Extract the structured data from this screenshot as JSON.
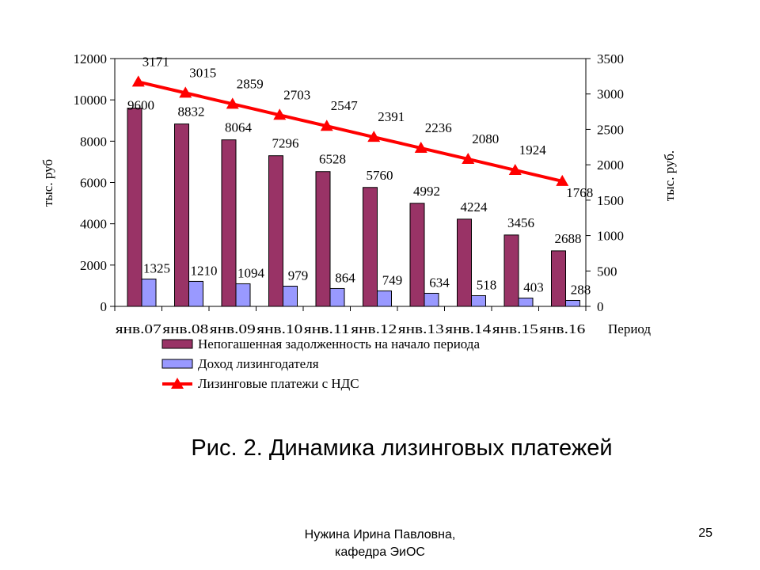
{
  "slide": {
    "caption": "Рис. 2. Динамика лизинговых платежей",
    "author_line1": "Нужина Ирина Павловна,",
    "author_line2": "кафедра ЭиОС",
    "page_number": "25"
  },
  "chart_data": {
    "type": "bar",
    "categories": [
      "янв.07",
      "янв.08",
      "янв.09",
      "янв.10",
      "янв.11",
      "янв.12",
      "янв.13",
      "янв.14",
      "янв.15",
      "янв.16"
    ],
    "xlabel": "Период",
    "ylabel_left": "тыс. руб",
    "ylabel_right": "тыс. руб.",
    "ylim_left": [
      0,
      12000
    ],
    "yticks_left": [
      0,
      2000,
      4000,
      6000,
      8000,
      10000,
      12000
    ],
    "ylim_right": [
      0,
      3500
    ],
    "yticks_right": [
      0,
      500,
      1000,
      1500,
      2000,
      2500,
      3000,
      3500
    ],
    "grid": false,
    "legend_position": "bottom",
    "series": [
      {
        "name": "Непогашенная задолженность на начало периода",
        "type": "bar",
        "axis": "left",
        "color": "#993366",
        "values": [
          9600,
          8832,
          8064,
          7296,
          6528,
          5760,
          4992,
          4224,
          3456,
          2688
        ]
      },
      {
        "name": "Доход лизингодателя",
        "type": "bar",
        "axis": "left",
        "color": "#9999ff",
        "values": [
          1325,
          1210,
          1094,
          979,
          864,
          749,
          634,
          518,
          403,
          288
        ]
      },
      {
        "name": "Лизинговые платежи с НДС",
        "type": "line",
        "axis": "right",
        "color": "#ff0000",
        "marker": "triangle",
        "values": [
          3171,
          3015,
          2859,
          2703,
          2547,
          2391,
          2236,
          2080,
          1924,
          1768
        ]
      }
    ]
  }
}
